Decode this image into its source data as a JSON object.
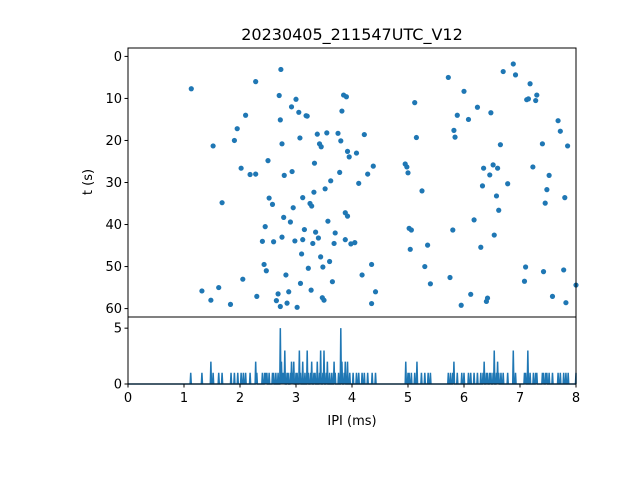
{
  "chart_data": [
    {
      "type": "scatter",
      "title": "20230405_211547UTC_V12",
      "xlabel": "",
      "ylabel": "t (s)",
      "xlim": [
        0,
        8
      ],
      "ylim": [
        62,
        -2
      ],
      "y_inverted": true,
      "yticks": [
        0,
        10,
        20,
        30,
        40,
        50,
        60
      ],
      "color": "#1f77b4",
      "points": [
        [
          1.13,
          7.7
        ],
        [
          1.32,
          55.8
        ],
        [
          1.48,
          58.0
        ],
        [
          1.52,
          21.3
        ],
        [
          1.62,
          55.0
        ],
        [
          1.68,
          34.8
        ],
        [
          1.83,
          59.0
        ],
        [
          1.9,
          20.0
        ],
        [
          1.95,
          17.2
        ],
        [
          2.02,
          26.6
        ],
        [
          2.05,
          53.0
        ],
        [
          2.1,
          14.0
        ],
        [
          2.18,
          28.1
        ],
        [
          2.28,
          28.0
        ],
        [
          2.28,
          6.0
        ],
        [
          2.3,
          57.1
        ],
        [
          2.4,
          44.0
        ],
        [
          2.43,
          49.5
        ],
        [
          2.45,
          40.5
        ],
        [
          2.47,
          51.0
        ],
        [
          2.5,
          24.8
        ],
        [
          2.52,
          33.7
        ],
        [
          2.58,
          35.2
        ],
        [
          2.6,
          44.1
        ],
        [
          2.65,
          58.1
        ],
        [
          2.68,
          56.5
        ],
        [
          2.7,
          9.3
        ],
        [
          2.72,
          59.5
        ],
        [
          2.72,
          15.1
        ],
        [
          2.73,
          3.1
        ],
        [
          2.75,
          20.8
        ],
        [
          2.75,
          43.0
        ],
        [
          2.78,
          38.3
        ],
        [
          2.79,
          28.3
        ],
        [
          2.82,
          52.0
        ],
        [
          2.84,
          58.7
        ],
        [
          2.87,
          56.0
        ],
        [
          2.9,
          39.4
        ],
        [
          2.92,
          12.0
        ],
        [
          2.93,
          27.4
        ],
        [
          2.95,
          36.0
        ],
        [
          2.98,
          43.9
        ],
        [
          3.0,
          10.2
        ],
        [
          3.02,
          59.7
        ],
        [
          3.05,
          13.3
        ],
        [
          3.07,
          19.4
        ],
        [
          3.08,
          54.0
        ],
        [
          3.1,
          47.0
        ],
        [
          3.12,
          33.6
        ],
        [
          3.12,
          43.6
        ],
        [
          3.15,
          41.2
        ],
        [
          3.18,
          14.1
        ],
        [
          3.2,
          14.2
        ],
        [
          3.22,
          50.4
        ],
        [
          3.25,
          35.0
        ],
        [
          3.27,
          55.6
        ],
        [
          3.28,
          35.6
        ],
        [
          3.3,
          44.5
        ],
        [
          3.32,
          32.3
        ],
        [
          3.33,
          25.4
        ],
        [
          3.35,
          41.8
        ],
        [
          3.38,
          18.5
        ],
        [
          3.4,
          43.2
        ],
        [
          3.42,
          20.8
        ],
        [
          3.44,
          47.7
        ],
        [
          3.45,
          21.5
        ],
        [
          3.47,
          57.4
        ],
        [
          3.48,
          50.1
        ],
        [
          3.5,
          58.0
        ],
        [
          3.52,
          31.5
        ],
        [
          3.55,
          18.2
        ],
        [
          3.57,
          39.2
        ],
        [
          3.6,
          48.8
        ],
        [
          3.62,
          29.6
        ],
        [
          3.65,
          53.6
        ],
        [
          3.68,
          44.5
        ],
        [
          3.7,
          42.0
        ],
        [
          3.75,
          18.3
        ],
        [
          3.78,
          27.6
        ],
        [
          3.8,
          20.1
        ],
        [
          3.82,
          13.0
        ],
        [
          3.85,
          9.2
        ],
        [
          3.88,
          37.2
        ],
        [
          3.88,
          43.6
        ],
        [
          3.9,
          9.6
        ],
        [
          3.92,
          38.0
        ],
        [
          3.92,
          22.6
        ],
        [
          3.95,
          23.9
        ],
        [
          3.98,
          44.6
        ],
        [
          4.05,
          44.3
        ],
        [
          4.08,
          23.0
        ],
        [
          4.12,
          30.2
        ],
        [
          4.18,
          52.0
        ],
        [
          4.22,
          18.6
        ],
        [
          4.28,
          28.0
        ],
        [
          4.35,
          49.5
        ],
        [
          4.38,
          26.1
        ],
        [
          4.42,
          56.0
        ],
        [
          4.35,
          58.8
        ],
        [
          4.95,
          25.6
        ],
        [
          4.98,
          26.3
        ],
        [
          5.0,
          27.7
        ],
        [
          5.02,
          40.9
        ],
        [
          5.04,
          45.9
        ],
        [
          5.06,
          41.3
        ],
        [
          5.12,
          11.0
        ],
        [
          5.15,
          19.3
        ],
        [
          5.25,
          32.0
        ],
        [
          5.3,
          50.0
        ],
        [
          5.35,
          44.9
        ],
        [
          5.4,
          54.1
        ],
        [
          5.72,
          5.0
        ],
        [
          5.75,
          52.6
        ],
        [
          5.8,
          41.3
        ],
        [
          5.82,
          17.6
        ],
        [
          5.84,
          19.2
        ],
        [
          5.88,
          14.0
        ],
        [
          5.95,
          59.2
        ],
        [
          6.0,
          8.3
        ],
        [
          6.08,
          15.0
        ],
        [
          6.12,
          56.6
        ],
        [
          6.18,
          38.9
        ],
        [
          6.24,
          12.1
        ],
        [
          6.3,
          45.4
        ],
        [
          6.33,
          30.8
        ],
        [
          6.35,
          26.6
        ],
        [
          6.4,
          58.3
        ],
        [
          6.42,
          57.5
        ],
        [
          6.46,
          28.2
        ],
        [
          6.48,
          13.4
        ],
        [
          6.52,
          25.8
        ],
        [
          6.54,
          42.5
        ],
        [
          6.58,
          33.2
        ],
        [
          6.6,
          26.6
        ],
        [
          6.62,
          36.6
        ],
        [
          6.65,
          21.0
        ],
        [
          6.7,
          3.6
        ],
        [
          6.78,
          30.3
        ],
        [
          6.88,
          1.8
        ],
        [
          6.92,
          4.4
        ],
        [
          7.08,
          53.5
        ],
        [
          7.1,
          50.1
        ],
        [
          7.12,
          10.3
        ],
        [
          7.15,
          10.1
        ],
        [
          7.18,
          6.5
        ],
        [
          7.23,
          26.3
        ],
        [
          7.28,
          10.5
        ],
        [
          7.3,
          9.2
        ],
        [
          7.4,
          20.8
        ],
        [
          7.42,
          51.2
        ],
        [
          7.45,
          34.9
        ],
        [
          7.48,
          31.7
        ],
        [
          7.52,
          28.3
        ],
        [
          7.58,
          57.1
        ],
        [
          7.68,
          15.3
        ],
        [
          7.72,
          17.8
        ],
        [
          7.78,
          50.8
        ],
        [
          7.8,
          33.6
        ],
        [
          7.82,
          58.6
        ],
        [
          7.85,
          21.3
        ],
        [
          8.0,
          54.4
        ]
      ]
    },
    {
      "type": "line",
      "xlabel": "IPI (ms)",
      "ylabel": "",
      "xlim": [
        0,
        8
      ],
      "ylim": [
        0,
        6
      ],
      "xticks": [
        0,
        1,
        2,
        3,
        4,
        5,
        6,
        7,
        8
      ],
      "yticks": [
        0,
        5
      ],
      "color": "#1f77b4",
      "bin_width": 0.02,
      "spikes": [
        [
          1.12,
          1
        ],
        [
          1.32,
          1
        ],
        [
          1.48,
          2
        ],
        [
          1.52,
          1
        ],
        [
          1.62,
          1
        ],
        [
          1.68,
          1
        ],
        [
          1.84,
          1
        ],
        [
          1.9,
          1
        ],
        [
          1.96,
          1
        ],
        [
          2.02,
          1
        ],
        [
          2.06,
          1
        ],
        [
          2.1,
          1
        ],
        [
          2.18,
          1
        ],
        [
          2.28,
          2
        ],
        [
          2.3,
          1
        ],
        [
          2.4,
          1
        ],
        [
          2.44,
          1
        ],
        [
          2.46,
          1
        ],
        [
          2.48,
          1
        ],
        [
          2.52,
          1
        ],
        [
          2.58,
          1
        ],
        [
          2.6,
          1
        ],
        [
          2.64,
          1
        ],
        [
          2.68,
          1
        ],
        [
          2.72,
          5
        ],
        [
          2.74,
          2
        ],
        [
          2.76,
          1
        ],
        [
          2.78,
          1
        ],
        [
          2.8,
          3
        ],
        [
          2.84,
          1
        ],
        [
          2.86,
          1
        ],
        [
          2.9,
          1
        ],
        [
          2.92,
          2
        ],
        [
          2.94,
          1
        ],
        [
          2.96,
          2
        ],
        [
          3.0,
          1
        ],
        [
          3.02,
          1
        ],
        [
          3.06,
          3
        ],
        [
          3.08,
          1
        ],
        [
          3.12,
          2
        ],
        [
          3.16,
          1
        ],
        [
          3.2,
          3
        ],
        [
          3.22,
          1
        ],
        [
          3.26,
          1
        ],
        [
          3.28,
          2
        ],
        [
          3.32,
          1
        ],
        [
          3.34,
          1
        ],
        [
          3.38,
          2
        ],
        [
          3.42,
          1
        ],
        [
          3.44,
          3
        ],
        [
          3.48,
          1
        ],
        [
          3.5,
          3
        ],
        [
          3.54,
          1
        ],
        [
          3.56,
          2
        ],
        [
          3.6,
          1
        ],
        [
          3.64,
          1
        ],
        [
          3.68,
          2
        ],
        [
          3.7,
          1
        ],
        [
          3.76,
          1
        ],
        [
          3.8,
          5
        ],
        [
          3.82,
          2
        ],
        [
          3.86,
          1
        ],
        [
          3.88,
          2
        ],
        [
          3.92,
          2
        ],
        [
          3.96,
          1
        ],
        [
          4.02,
          1
        ],
        [
          4.08,
          1
        ],
        [
          4.12,
          1
        ],
        [
          4.18,
          1
        ],
        [
          4.22,
          1
        ],
        [
          4.28,
          1
        ],
        [
          4.36,
          1
        ],
        [
          4.42,
          1
        ],
        [
          4.96,
          2
        ],
        [
          5.0,
          1
        ],
        [
          5.02,
          1
        ],
        [
          5.06,
          1
        ],
        [
          5.12,
          1
        ],
        [
          5.16,
          2
        ],
        [
          5.24,
          1
        ],
        [
          5.3,
          1
        ],
        [
          5.36,
          1
        ],
        [
          5.4,
          1
        ],
        [
          5.72,
          1
        ],
        [
          5.76,
          1
        ],
        [
          5.8,
          1
        ],
        [
          5.82,
          2
        ],
        [
          5.88,
          1
        ],
        [
          5.96,
          1
        ],
        [
          6.0,
          1
        ],
        [
          6.08,
          1
        ],
        [
          6.12,
          1
        ],
        [
          6.18,
          1
        ],
        [
          6.24,
          1
        ],
        [
          6.3,
          1
        ],
        [
          6.34,
          1
        ],
        [
          6.36,
          2
        ],
        [
          6.4,
          1
        ],
        [
          6.42,
          1
        ],
        [
          6.46,
          1
        ],
        [
          6.48,
          1
        ],
        [
          6.52,
          1
        ],
        [
          6.54,
          3
        ],
        [
          6.58,
          1
        ],
        [
          6.6,
          2
        ],
        [
          6.62,
          1
        ],
        [
          6.66,
          1
        ],
        [
          6.7,
          1
        ],
        [
          6.78,
          1
        ],
        [
          6.88,
          3
        ],
        [
          6.92,
          1
        ],
        [
          7.08,
          1
        ],
        [
          7.1,
          1
        ],
        [
          7.14,
          3
        ],
        [
          7.18,
          1
        ],
        [
          7.24,
          1
        ],
        [
          7.28,
          1
        ],
        [
          7.3,
          1
        ],
        [
          7.4,
          1
        ],
        [
          7.42,
          1
        ],
        [
          7.46,
          1
        ],
        [
          7.48,
          1
        ],
        [
          7.52,
          1
        ],
        [
          7.58,
          1
        ],
        [
          7.68,
          1
        ],
        [
          7.72,
          1
        ],
        [
          7.78,
          1
        ],
        [
          7.82,
          1
        ],
        [
          7.86,
          1
        ],
        [
          8.0,
          1
        ]
      ]
    }
  ]
}
